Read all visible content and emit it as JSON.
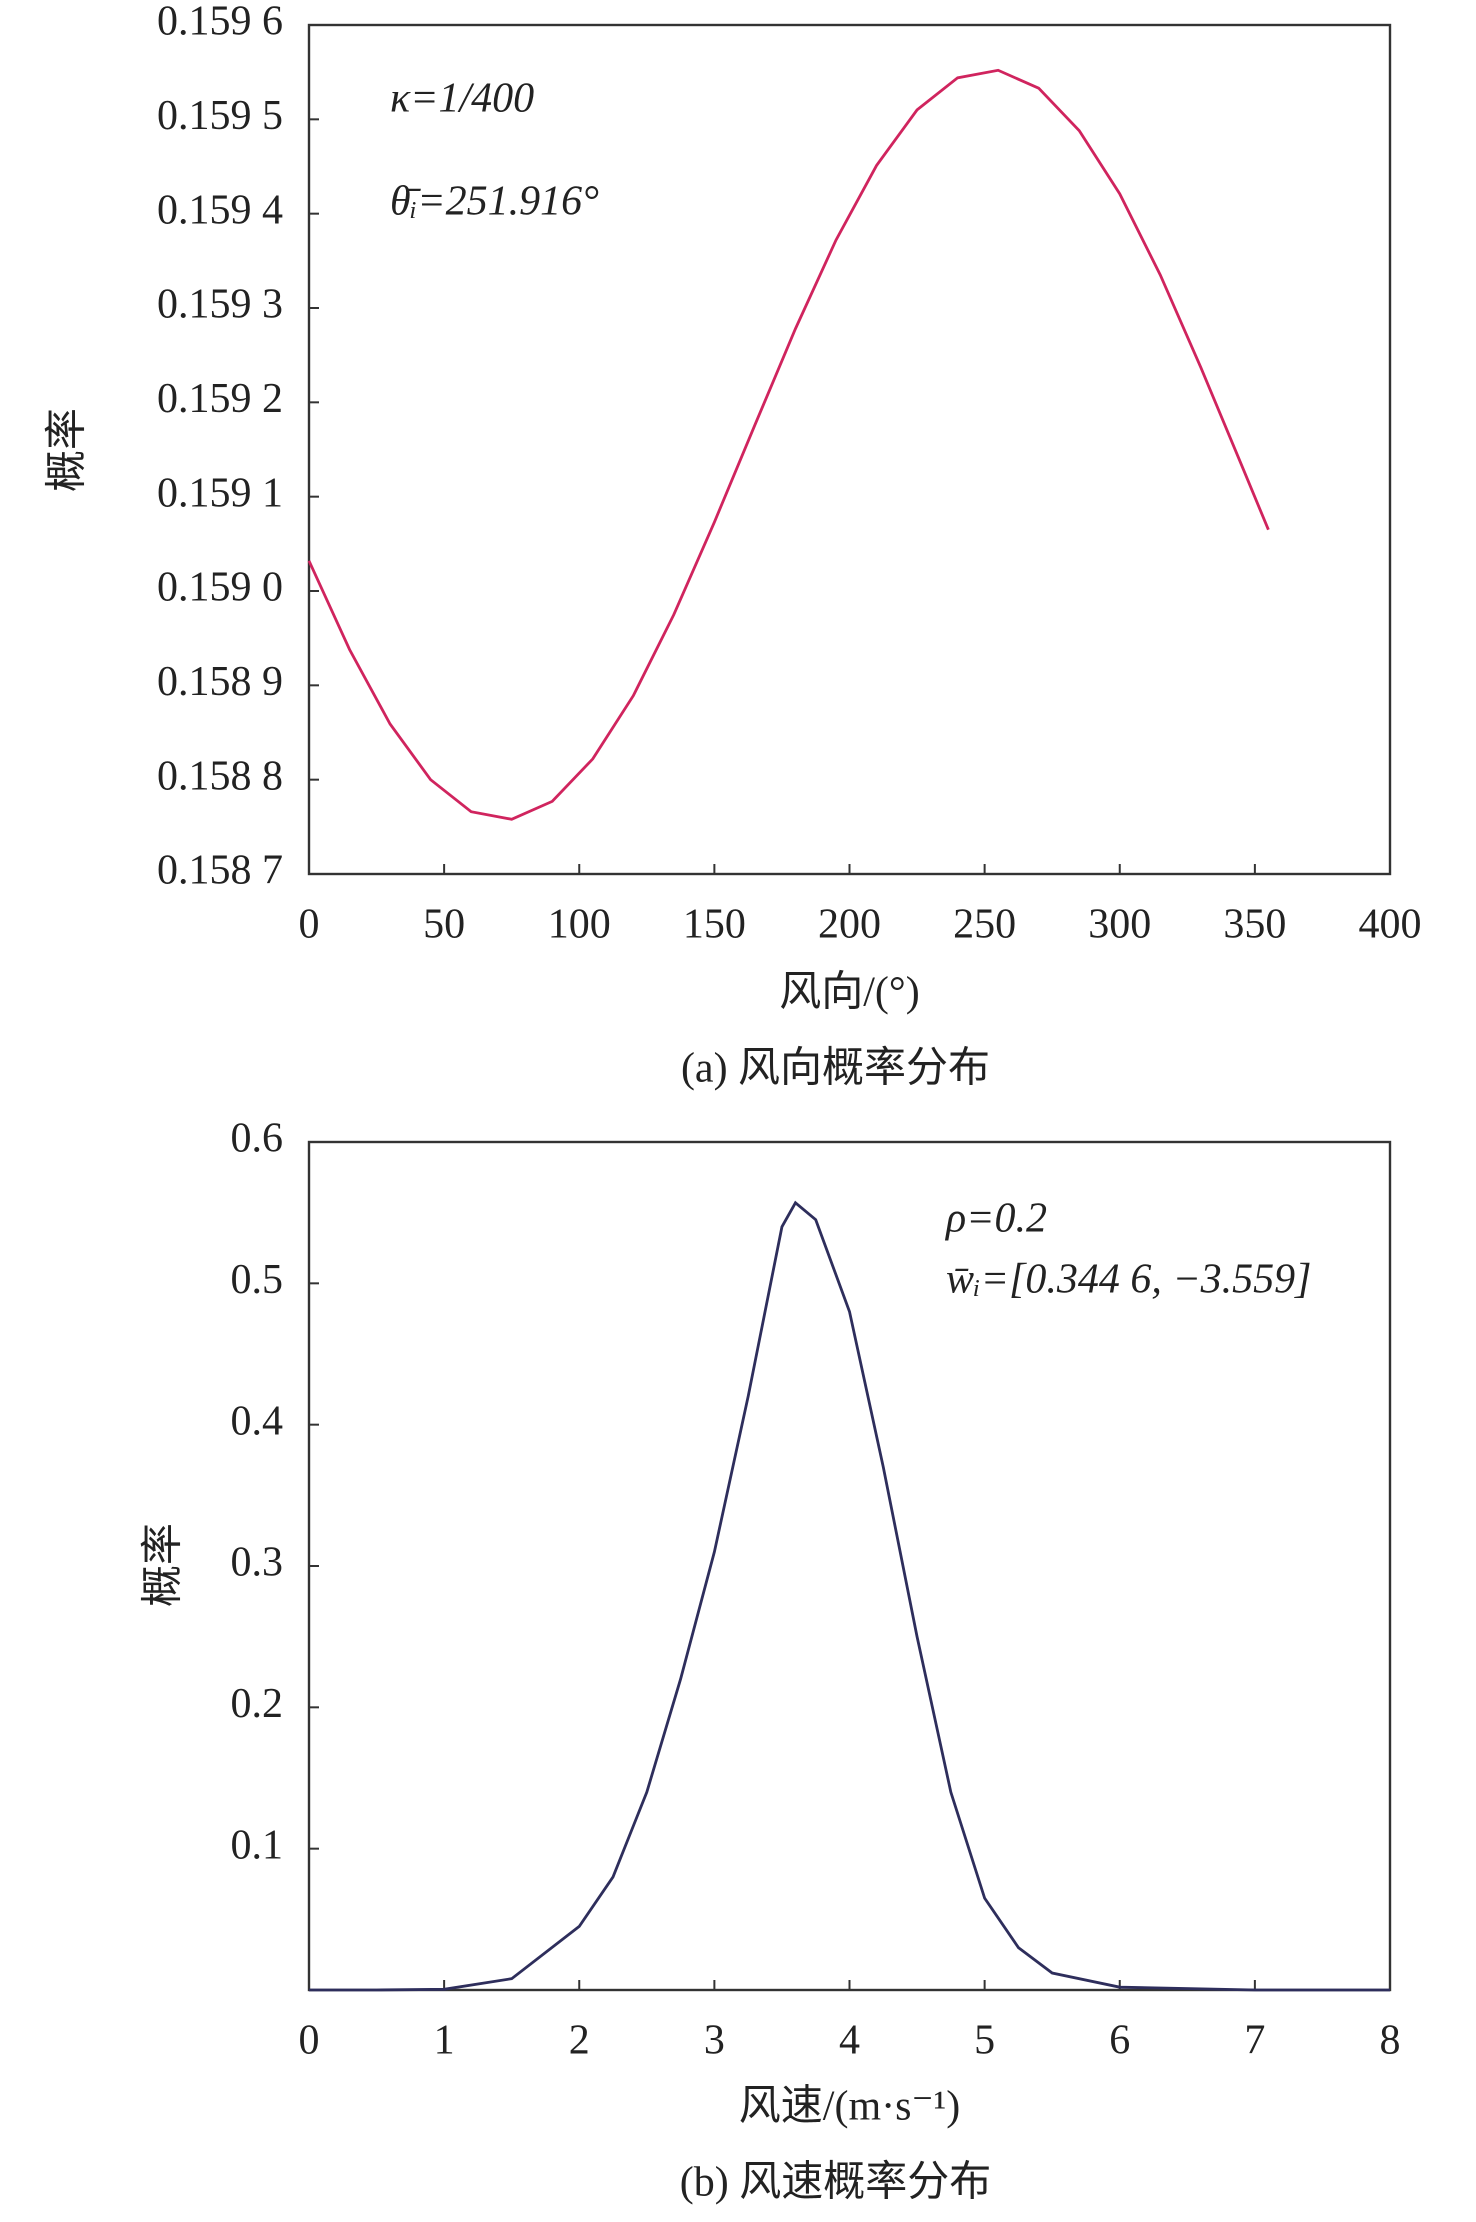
{
  "chart_data": [
    {
      "type": "line",
      "xlabel": "风向/(°)",
      "ylabel": "概率",
      "caption": "(a) 风向概率分布",
      "annotations": [
        "κ=1/400",
        "θ̄ᵢ=251.916°"
      ],
      "x": [
        0,
        15,
        30,
        45,
        60,
        75,
        90,
        105,
        120,
        135,
        150,
        165,
        180,
        195,
        210,
        225,
        240,
        255,
        270,
        285,
        300,
        315,
        330,
        345,
        355
      ],
      "values": [
        0.159032,
        0.158938,
        0.158859,
        0.1588,
        0.158766,
        0.158758,
        0.158777,
        0.158822,
        0.158889,
        0.158975,
        0.159073,
        0.159176,
        0.159278,
        0.159372,
        0.159451,
        0.15951,
        0.159544,
        0.159552,
        0.159533,
        0.159488,
        0.159421,
        0.159335,
        0.159237,
        0.159134,
        0.159065
      ],
      "color": "#d0245e",
      "xlim": [
        0,
        400
      ],
      "xticks": [
        0,
        50,
        100,
        150,
        200,
        250,
        300,
        350,
        400
      ],
      "ylim": [
        0.1587,
        0.1596
      ],
      "yticks": [
        {
          "value": 0.1587,
          "label": "0.158 7"
        },
        {
          "value": 0.1588,
          "label": "0.158 8"
        },
        {
          "value": 0.1589,
          "label": "0.158 9"
        },
        {
          "value": 0.159,
          "label": "0.159 0"
        },
        {
          "value": 0.1591,
          "label": "0.159 1"
        },
        {
          "value": 0.1592,
          "label": "0.159 2"
        },
        {
          "value": 0.1593,
          "label": "0.159 3"
        },
        {
          "value": 0.1594,
          "label": "0.159 4"
        },
        {
          "value": 0.1595,
          "label": "0.159 5"
        },
        {
          "value": 0.1596,
          "label": "0.159 6"
        }
      ]
    },
    {
      "type": "line",
      "xlabel": "风速/(m·s⁻¹)",
      "ylabel": "概率",
      "caption": "(b) 风速概率分布",
      "annotations": [
        "ρ=0.2",
        "w̄ᵢ=[0.344 6, −3.559]"
      ],
      "x": [
        0,
        0.5,
        1,
        1.5,
        2,
        2.25,
        2.5,
        2.75,
        3,
        3.25,
        3.5,
        3.6,
        3.75,
        4,
        4.25,
        4.5,
        4.75,
        5,
        5.25,
        5.5,
        6,
        7,
        8
      ],
      "values": [
        0,
        0,
        0.0005,
        0.008,
        0.045,
        0.08,
        0.14,
        0.22,
        0.31,
        0.42,
        0.54,
        0.557,
        0.545,
        0.48,
        0.37,
        0.25,
        0.14,
        0.065,
        0.03,
        0.012,
        0.002,
        0,
        0
      ],
      "color": "#2e2e5c",
      "xlim": [
        0,
        8
      ],
      "xticks": [
        0,
        1,
        2,
        3,
        4,
        5,
        6,
        7,
        8
      ],
      "ylim": [
        0,
        0.6
      ],
      "yticks": [
        0.1,
        0.2,
        0.3,
        0.4,
        0.5,
        0.6
      ]
    }
  ]
}
